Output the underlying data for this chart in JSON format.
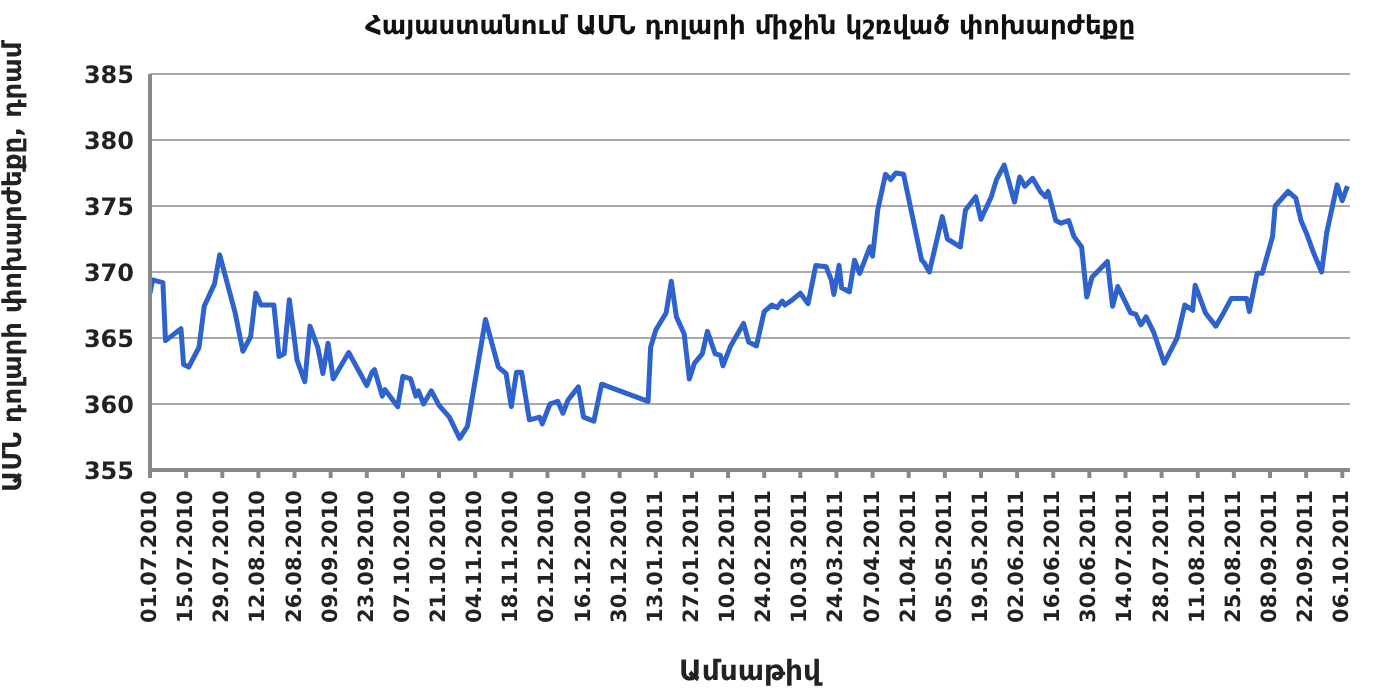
{
  "chart_data": {
    "type": "line",
    "title": "Հայաստանում ԱՄՆ դոլարի միջին կշռված փոխարժեքը",
    "xlabel": "Ամսաթիվ",
    "ylabel": "ԱՄՆ դոլարի փոխարժեքը, դրամ",
    "x": [
      "2010-07-01",
      "2010-07-02",
      "2010-07-06",
      "2010-07-07",
      "2010-07-13",
      "2010-07-14",
      "2010-07-16",
      "2010-07-20",
      "2010-07-22",
      "2010-07-26",
      "2010-07-28",
      "2010-08-03",
      "2010-08-06",
      "2010-08-09",
      "2010-08-11",
      "2010-08-13",
      "2010-08-18",
      "2010-08-20",
      "2010-08-22",
      "2010-08-24",
      "2010-08-27",
      "2010-08-30",
      "2010-09-01",
      "2010-09-04",
      "2010-09-06",
      "2010-09-08",
      "2010-09-10",
      "2010-09-16",
      "2010-09-23",
      "2010-09-25",
      "2010-09-26",
      "2010-09-29",
      "2010-09-30",
      "2010-10-05",
      "2010-10-07",
      "2010-10-10",
      "2010-10-12",
      "2010-10-13",
      "2010-10-15",
      "2010-10-18",
      "2010-10-21",
      "2010-10-25",
      "2010-10-29",
      "2010-11-01",
      "2010-11-08",
      "2010-11-13",
      "2010-11-16",
      "2010-11-18",
      "2010-11-20",
      "2010-11-22",
      "2010-11-25",
      "2010-11-29",
      "2010-11-30",
      "2010-12-03",
      "2010-12-06",
      "2010-12-08",
      "2010-12-10",
      "2010-12-14",
      "2010-12-16",
      "2010-12-20",
      "2010-12-23",
      "2011-01-10",
      "2011-01-11",
      "2011-01-13",
      "2011-01-17",
      "2011-01-19",
      "2011-01-21",
      "2011-01-24",
      "2011-01-26",
      "2011-01-28",
      "2011-01-31",
      "2011-02-02",
      "2011-02-05",
      "2011-02-07",
      "2011-02-08",
      "2011-02-11",
      "2011-02-16",
      "2011-02-18",
      "2011-02-21",
      "2011-02-24",
      "2011-02-27",
      "2011-03-01",
      "2011-03-03",
      "2011-03-04",
      "2011-03-07",
      "2011-03-10",
      "2011-03-13",
      "2011-03-16",
      "2011-03-20",
      "2011-03-22",
      "2011-03-23",
      "2011-03-25",
      "2011-03-26",
      "2011-03-29",
      "2011-03-31",
      "2011-04-02",
      "2011-04-06",
      "2011-04-07",
      "2011-04-09",
      "2011-04-12",
      "2011-04-14",
      "2011-04-16",
      "2011-04-19",
      "2011-04-23",
      "2011-04-26",
      "2011-04-27",
      "2011-04-29",
      "2011-05-04",
      "2011-05-06",
      "2011-05-11",
      "2011-05-13",
      "2011-05-17",
      "2011-05-19",
      "2011-05-23",
      "2011-05-25",
      "2011-05-28",
      "2011-05-30",
      "2011-06-01",
      "2011-06-03",
      "2011-06-05",
      "2011-06-08",
      "2011-06-11",
      "2011-06-13",
      "2011-06-14",
      "2011-06-17",
      "2011-06-19",
      "2011-06-22",
      "2011-06-24",
      "2011-06-27",
      "2011-06-29",
      "2011-07-01",
      "2011-07-07",
      "2011-07-09",
      "2011-07-11",
      "2011-07-16",
      "2011-07-18",
      "2011-07-20",
      "2011-07-22",
      "2011-07-25",
      "2011-07-29",
      "2011-08-03",
      "2011-08-06",
      "2011-08-09",
      "2011-08-10",
      "2011-08-14",
      "2011-08-18",
      "2011-08-21",
      "2011-08-24",
      "2011-08-28",
      "2011-08-30",
      "2011-08-31",
      "2011-09-03",
      "2011-09-05",
      "2011-09-09",
      "2011-09-10",
      "2011-09-15",
      "2011-09-18",
      "2011-09-20",
      "2011-09-22",
      "2011-09-25",
      "2011-09-28",
      "2011-09-30",
      "2011-10-04",
      "2011-10-06",
      "2011-10-08"
    ],
    "series": [
      {
        "color": "#2e62cc",
        "values": [
          368.4,
          369.4,
          369.2,
          364.8,
          365.7,
          363.0,
          362.8,
          364.3,
          367.4,
          369.1,
          371.3,
          366.9,
          364.0,
          365.1,
          368.4,
          367.5,
          367.5,
          363.6,
          363.8,
          367.9,
          363.3,
          361.7,
          365.9,
          364.3,
          362.3,
          364.6,
          361.9,
          363.9,
          361.4,
          362.4,
          362.6,
          360.6,
          361.1,
          359.8,
          362.1,
          361.9,
          360.6,
          361.0,
          360.0,
          361.0,
          359.9,
          359.0,
          357.4,
          358.3,
          366.4,
          362.8,
          362.3,
          359.8,
          362.4,
          362.4,
          358.8,
          359.0,
          358.5,
          360.0,
          360.2,
          359.3,
          360.3,
          361.3,
          359.0,
          358.7,
          361.5,
          360.2,
          364.3,
          365.6,
          366.9,
          369.3,
          366.6,
          365.3,
          361.9,
          363.1,
          363.8,
          365.5,
          363.8,
          363.7,
          362.9,
          364.4,
          366.1,
          364.7,
          364.4,
          367.0,
          367.5,
          367.3,
          367.8,
          367.5,
          367.9,
          368.4,
          367.6,
          370.5,
          370.4,
          369.4,
          368.3,
          370.5,
          368.8,
          368.5,
          370.9,
          369.9,
          371.9,
          371.2,
          374.7,
          377.4,
          377.0,
          377.5,
          377.4,
          373.7,
          370.9,
          370.7,
          370.0,
          374.2,
          372.5,
          371.9,
          374.7,
          375.7,
          374.0,
          375.7,
          377.0,
          378.1,
          376.7,
          375.3,
          377.2,
          376.5,
          377.1,
          376.1,
          375.7,
          376.1,
          373.9,
          373.7,
          373.9,
          372.7,
          371.9,
          368.1,
          369.6,
          370.8,
          367.4,
          368.9,
          366.9,
          366.8,
          366.0,
          366.6,
          365.4,
          363.1,
          365.0,
          367.5,
          367.1,
          369.0,
          366.9,
          365.9,
          366.9,
          368.0,
          368.0,
          368.0,
          367.0,
          369.9,
          369.9,
          372.7,
          375.0,
          376.1,
          375.6,
          373.9,
          373.0,
          371.4,
          370.0,
          373.0,
          376.6,
          375.4,
          376.5
        ]
      }
    ],
    "xlim": [
      "2010-07-01",
      "2011-10-09"
    ],
    "xticks": [
      {
        "value": "2010-07-01",
        "label": "01.07.2010"
      },
      {
        "value": "2010-07-15",
        "label": "15.07.2010"
      },
      {
        "value": "2010-07-29",
        "label": "29.07.2010"
      },
      {
        "value": "2010-08-12",
        "label": "12.08.2010"
      },
      {
        "value": "2010-08-26",
        "label": "26.08.2010"
      },
      {
        "value": "2010-09-09",
        "label": "09.09.2010"
      },
      {
        "value": "2010-09-23",
        "label": "23.09.2010"
      },
      {
        "value": "2010-10-07",
        "label": "07.10.2010"
      },
      {
        "value": "2010-10-21",
        "label": "21.10.2010"
      },
      {
        "value": "2010-11-04",
        "label": "04.11.2010"
      },
      {
        "value": "2010-11-18",
        "label": "18.11.2010"
      },
      {
        "value": "2010-12-02",
        "label": "02.12.2010"
      },
      {
        "value": "2010-12-16",
        "label": "16.12.2010"
      },
      {
        "value": "2010-12-30",
        "label": "30.12.2010"
      },
      {
        "value": "2011-01-13",
        "label": "13.01.2011"
      },
      {
        "value": "2011-01-27",
        "label": "27.01.2011"
      },
      {
        "value": "2011-02-10",
        "label": "10.02.2011"
      },
      {
        "value": "2011-02-24",
        "label": "24.02.2011"
      },
      {
        "value": "2011-03-10",
        "label": "10.03.2011"
      },
      {
        "value": "2011-03-24",
        "label": "24.03.2011"
      },
      {
        "value": "2011-04-07",
        "label": "07.04.2011"
      },
      {
        "value": "2011-04-21",
        "label": "21.04.2011"
      },
      {
        "value": "2011-05-05",
        "label": "05.05.2011"
      },
      {
        "value": "2011-05-19",
        "label": "19.05.2011"
      },
      {
        "value": "2011-06-02",
        "label": "02.06.2011"
      },
      {
        "value": "2011-06-16",
        "label": "16.06.2011"
      },
      {
        "value": "2011-06-30",
        "label": "30.06.2011"
      },
      {
        "value": "2011-07-14",
        "label": "14.07.2011"
      },
      {
        "value": "2011-07-28",
        "label": "28.07.2011"
      },
      {
        "value": "2011-08-11",
        "label": "11.08.2011"
      },
      {
        "value": "2011-08-25",
        "label": "25.08.2011"
      },
      {
        "value": "2011-09-08",
        "label": "08.09.2011"
      },
      {
        "value": "2011-09-22",
        "label": "22.09.2011"
      },
      {
        "value": "2011-10-06",
        "label": "06.10.2011"
      }
    ],
    "ylim": [
      355,
      385
    ],
    "yticks": [
      355,
      360,
      365,
      370,
      375,
      380,
      385
    ],
    "grid": "y",
    "legend": false,
    "marker": "none",
    "line_style": "solid"
  }
}
